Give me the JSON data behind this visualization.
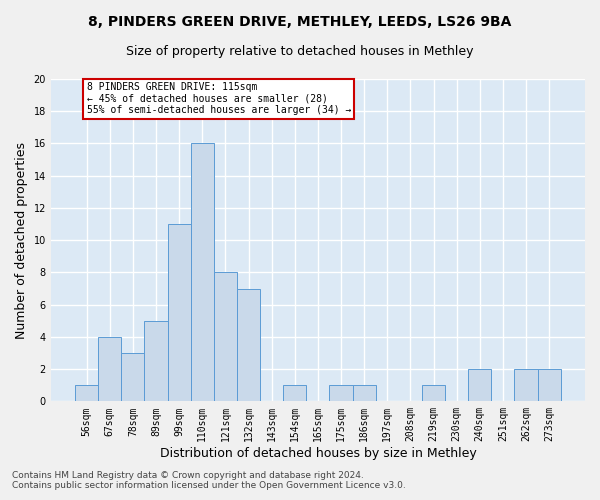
{
  "title1": "8, PINDERS GREEN DRIVE, METHLEY, LEEDS, LS26 9BA",
  "title2": "Size of property relative to detached houses in Methley",
  "xlabel": "Distribution of detached houses by size in Methley",
  "ylabel": "Number of detached properties",
  "categories": [
    "56sqm",
    "67sqm",
    "78sqm",
    "89sqm",
    "99sqm",
    "110sqm",
    "121sqm",
    "132sqm",
    "143sqm",
    "154sqm",
    "165sqm",
    "175sqm",
    "186sqm",
    "197sqm",
    "208sqm",
    "219sqm",
    "230sqm",
    "240sqm",
    "251sqm",
    "262sqm",
    "273sqm"
  ],
  "values": [
    1,
    4,
    3,
    5,
    11,
    16,
    8,
    7,
    0,
    1,
    0,
    1,
    1,
    0,
    0,
    1,
    0,
    2,
    0,
    2,
    2
  ],
  "bar_color": "#c9d9ea",
  "bar_edge_color": "#5b9bd5",
  "annotation_line1": "8 PINDERS GREEN DRIVE: 115sqm",
  "annotation_line2": "← 45% of detached houses are smaller (28)",
  "annotation_line3": "55% of semi-detached houses are larger (34) →",
  "annotation_box_color": "#ffffff",
  "annotation_box_edge_color": "#cc0000",
  "ylim": [
    0,
    20
  ],
  "yticks": [
    0,
    2,
    4,
    6,
    8,
    10,
    12,
    14,
    16,
    18,
    20
  ],
  "footnote": "Contains HM Land Registry data © Crown copyright and database right 2024.\nContains public sector information licensed under the Open Government Licence v3.0.",
  "fig_bg_color": "#f0f0f0",
  "plot_bg_color": "#dce9f5",
  "grid_color": "#ffffff",
  "title_fontsize": 10,
  "subtitle_fontsize": 9,
  "tick_fontsize": 7,
  "ylabel_fontsize": 9,
  "xlabel_fontsize": 9,
  "footnote_fontsize": 6.5
}
